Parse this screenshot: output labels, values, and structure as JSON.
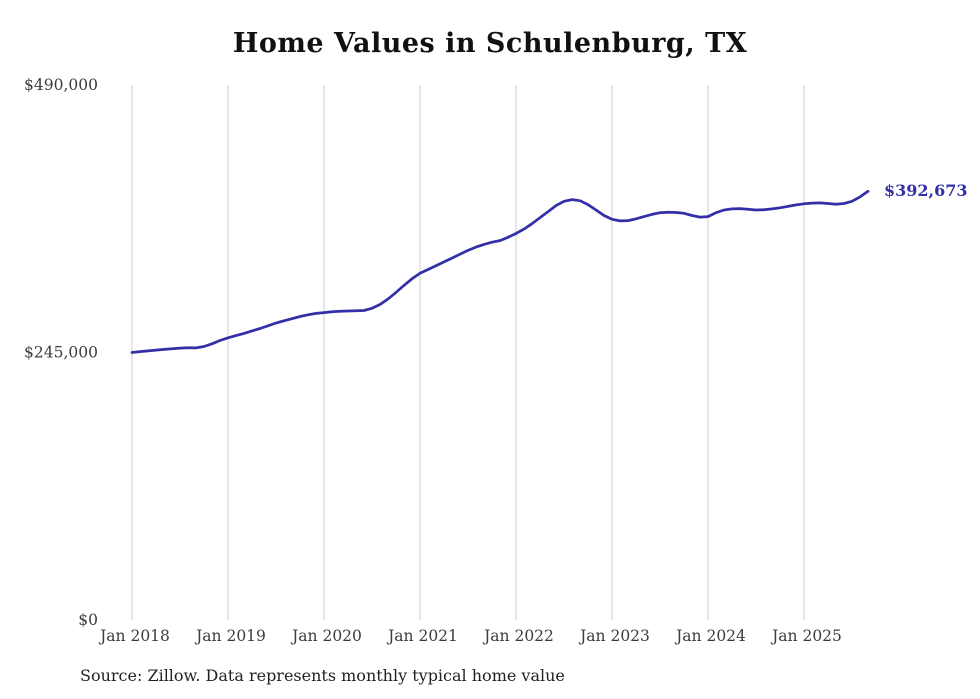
{
  "chart_data": {
    "type": "line",
    "title": "Home Values in Schulenburg, TX",
    "source": "Source: Zillow. Data represents monthly typical home value",
    "xlabel": "",
    "ylabel": "",
    "x_ticks": [
      "Jan 2018",
      "Jan 2019",
      "Jan 2020",
      "Jan 2021",
      "Jan 2022",
      "Jan 2023",
      "Jan 2024",
      "Jan 2025"
    ],
    "y_ticks": [
      {
        "value": 0,
        "label": "$0"
      },
      {
        "value": 245000,
        "label": "$245,000"
      },
      {
        "value": 490000,
        "label": "$490,000"
      }
    ],
    "ylim": [
      0,
      490000
    ],
    "grid": "vertical-only",
    "legend_position": "none",
    "start_month": "2018-01",
    "end_month": "2025-09",
    "end_label": "$392,673",
    "end_value": 392673,
    "line_color": "#332fa8",
    "grid_color": "#cccccc",
    "series": [
      {
        "name": "Typical home value",
        "values": [
          245000,
          245800,
          246500,
          247200,
          247800,
          248400,
          249000,
          249300,
          249200,
          250500,
          253000,
          256000,
          258500,
          260500,
          262500,
          264800,
          267000,
          269500,
          272000,
          274000,
          276000,
          278000,
          279500,
          280800,
          281500,
          282300,
          282800,
          283000,
          283200,
          283500,
          285500,
          289000,
          294000,
          300000,
          306500,
          312500,
          317500,
          321000,
          324500,
          328000,
          331500,
          335000,
          338500,
          341500,
          344000,
          346000,
          347500,
          350500,
          354000,
          358000,
          363000,
          368500,
          374000,
          379500,
          383500,
          385000,
          384000,
          380500,
          375500,
          370500,
          367000,
          365500,
          365800,
          367500,
          369500,
          371500,
          373000,
          373500,
          373200,
          372500,
          370500,
          369000,
          369500,
          373000,
          375500,
          376500,
          376800,
          376200,
          375500,
          375800,
          376500,
          377500,
          378800,
          380200,
          381200,
          381800,
          382000,
          381500,
          380800,
          381500,
          383500,
          387500,
          392673
        ]
      }
    ]
  }
}
